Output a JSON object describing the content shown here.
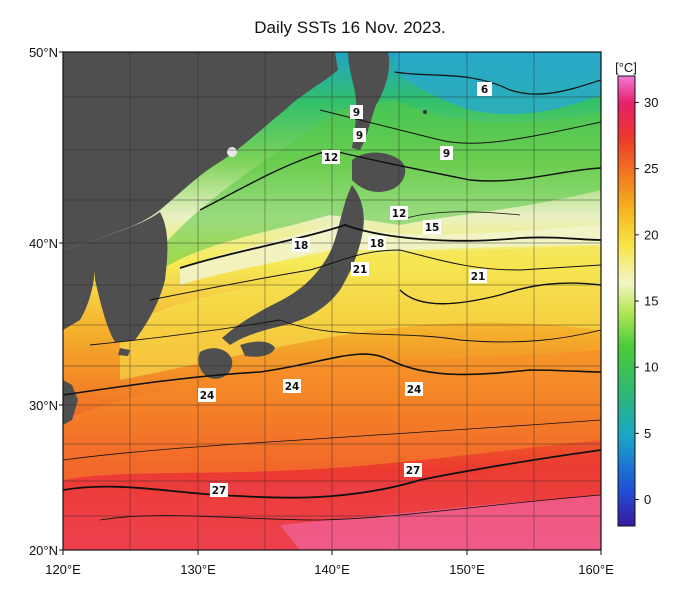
{
  "title": "Daily SSTs 16 Nov. 2023.",
  "lat_ticks": [
    "50°N",
    "40°N",
    "30°N",
    "20°N"
  ],
  "lon_ticks": [
    "120°E",
    "130°E",
    "140°E",
    "150°E",
    "160°E"
  ],
  "colorbar": {
    "unit": "[°C]",
    "ticks": [
      "30",
      "25",
      "20",
      "15",
      "10",
      "5",
      "0"
    ],
    "range": [
      -2,
      32
    ],
    "colors": [
      "#3a1aa0",
      "#1f4fd6",
      "#1aa6c8",
      "#2fb870",
      "#4ccc3a",
      "#b8e85a",
      "#f4f4c8",
      "#f6e64a",
      "#f6b61e",
      "#f27a22",
      "#ec3a2a",
      "#e6206a",
      "#f07ad8"
    ]
  },
  "contour_labels": [
    {
      "text": "6"
    },
    {
      "text": "9"
    },
    {
      "text": "9"
    },
    {
      "text": "9"
    },
    {
      "text": "12"
    },
    {
      "text": "12"
    },
    {
      "text": "15"
    },
    {
      "text": "18"
    },
    {
      "text": "18"
    },
    {
      "text": "21"
    },
    {
      "text": "21"
    },
    {
      "text": "24"
    },
    {
      "text": "24"
    },
    {
      "text": "24"
    },
    {
      "text": "27"
    },
    {
      "text": "27"
    }
  ],
  "land_color": "#505050"
}
